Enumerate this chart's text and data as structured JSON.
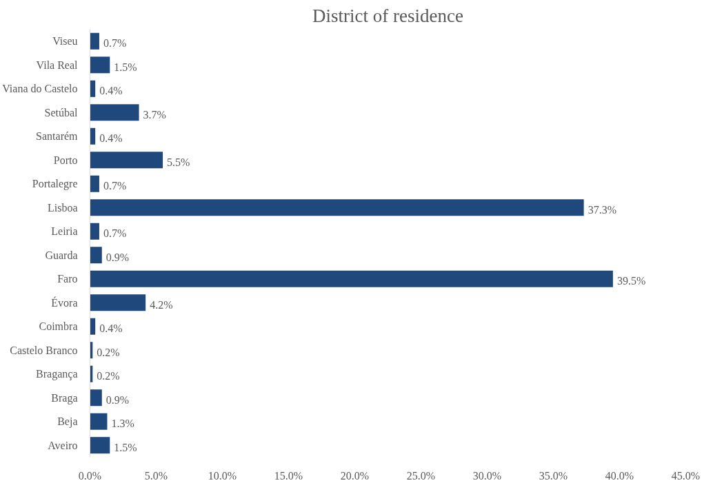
{
  "chart_data": {
    "type": "bar",
    "orientation": "horizontal",
    "title": "District of residence",
    "categories": [
      "Viseu",
      "Vila Real",
      "Viana do Castelo",
      "Setúbal",
      "Santarém",
      "Porto",
      "Portalegre",
      "Lisboa",
      "Leiria",
      "Guarda",
      "Faro",
      "Évora",
      "Coimbra",
      "Castelo Branco",
      "Bragança",
      "Braga",
      "Beja",
      "Aveiro"
    ],
    "values": [
      0.7,
      1.5,
      0.4,
      3.7,
      0.4,
      5.5,
      0.7,
      37.3,
      0.7,
      0.9,
      39.5,
      4.2,
      0.4,
      0.2,
      0.2,
      0.9,
      1.3,
      1.5
    ],
    "value_labels": [
      "0.7%",
      "1.5%",
      "0.4%",
      "3.7%",
      "0.4%",
      "5.5%",
      "0.7%",
      "37.3%",
      "0.7%",
      "0.9%",
      "39.5%",
      "4.2%",
      "0.4%",
      "0.2%",
      "0.2%",
      "0.9%",
      "1.3%",
      "1.5%"
    ],
    "color": "#1f497d",
    "xlim": [
      0,
      45
    ],
    "xticks": [
      {
        "value": 0,
        "label": "0.0%"
      },
      {
        "value": 5,
        "label": "5.0%"
      },
      {
        "value": 10,
        "label": "10.0%"
      },
      {
        "value": 15,
        "label": "15.0%"
      },
      {
        "value": 20,
        "label": "20.0%"
      },
      {
        "value": 25,
        "label": "25.0%"
      },
      {
        "value": 30,
        "label": "30.0%"
      },
      {
        "value": 35,
        "label": "35.0%"
      },
      {
        "value": 40,
        "label": "40.0%"
      },
      {
        "value": 45,
        "label": "45.0%"
      }
    ],
    "grid": false
  }
}
